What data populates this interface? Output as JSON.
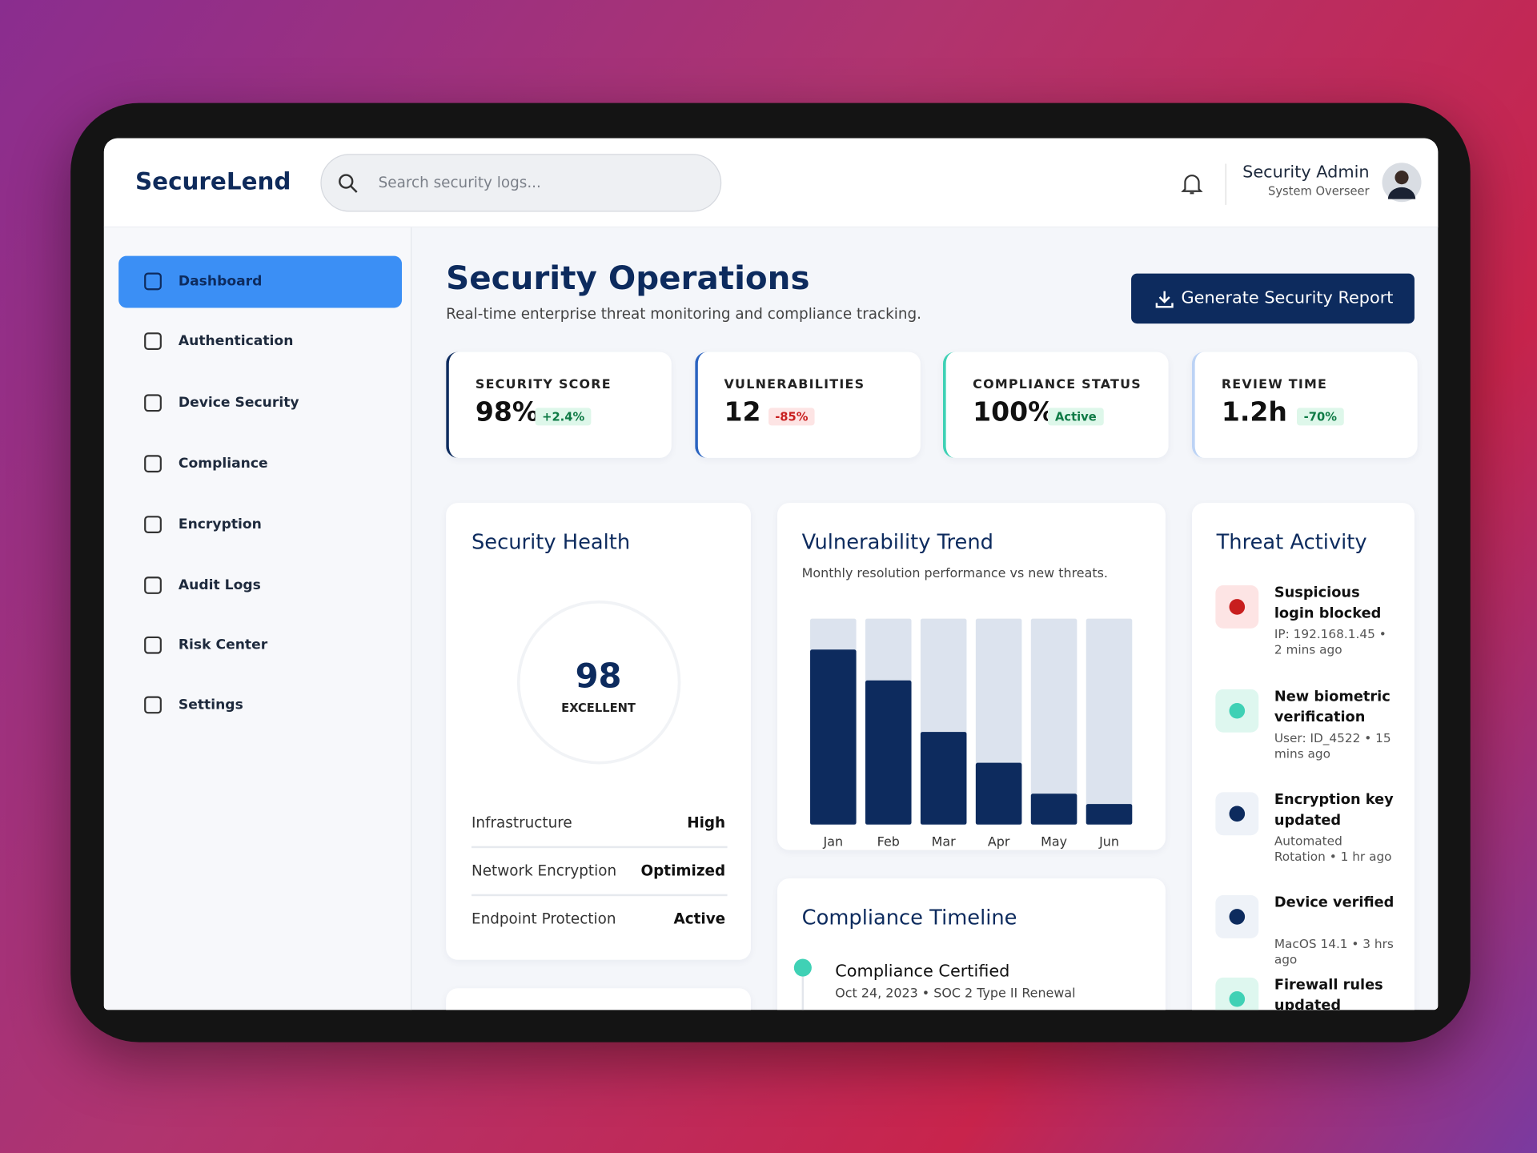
{
  "header": {
    "logo": "SecureLend",
    "search_placeholder": "Search security logs...",
    "user": {
      "name": "Security Admin",
      "role": "System Overseer"
    }
  },
  "sidebar": {
    "items": [
      "Dashboard",
      "Authentication",
      "Device Security",
      "Compliance",
      "Encryption",
      "Audit Logs",
      "Risk Center",
      "Settings"
    ]
  },
  "page": {
    "title": "Security Operations",
    "subtitle": "Real-time enterprise threat monitoring and compliance tracking.",
    "button": "Generate Security Report"
  },
  "kpis": [
    {
      "label": "SECURITY SCORE",
      "value": "98%",
      "change": "+2.4%"
    },
    {
      "label": "VULNERABILITIES",
      "value": "12",
      "change": "-85%"
    },
    {
      "label": "COMPLIANCE STATUS",
      "value": "100%",
      "change": "Active"
    },
    {
      "label": "REVIEW TIME",
      "value": "1.2h",
      "change": "-70%"
    }
  ],
  "security_health": {
    "title": "Security Health",
    "score": "98",
    "rating": "EXCELLENT",
    "rows": [
      {
        "label": "Infrastructure",
        "status": "High"
      },
      {
        "label": "Network Encryption",
        "status": "Optimized"
      },
      {
        "label": "Endpoint Protection",
        "status": "Active"
      }
    ]
  },
  "chart_data": {
    "type": "bar",
    "title": "Vulnerability Trend",
    "subtitle": "Monthly resolution performance vs new threats.",
    "categories": [
      "Jan",
      "Feb",
      "Mar",
      "Apr",
      "May",
      "Jun"
    ],
    "values": [
      85,
      70,
      45,
      30,
      15,
      10
    ],
    "ylim": [
      0,
      100
    ],
    "color": "#0d2b5e",
    "track_color": "#dce3ee"
  },
  "threat_activity": {
    "title": "Threat Activity",
    "items": [
      {
        "title": "Suspicious login blocked",
        "detail": "IP: 192.168.1.45 • 2 mins ago"
      },
      {
        "title": "New biometric verification",
        "detail": "User: ID_4522 • 15 mins ago"
      },
      {
        "title": "Encryption key updated",
        "detail": "Automated Rotation • 1 hr ago"
      },
      {
        "title": "Device verified",
        "detail": "MacOS 14.1 • 3 hrs ago"
      },
      {
        "title": "Firewall rules updated"
      }
    ]
  },
  "compliance_timeline": {
    "title": "Compliance Timeline",
    "items": [
      {
        "title": "Compliance Certified",
        "detail": "Oct 24, 2023 • SOC 2 Type II Renewal"
      }
    ]
  }
}
